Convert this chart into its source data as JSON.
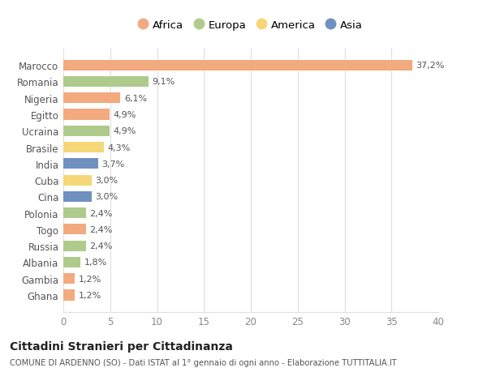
{
  "countries": [
    "Marocco",
    "Romania",
    "Nigeria",
    "Egitto",
    "Ucraina",
    "Brasile",
    "India",
    "Cuba",
    "Cina",
    "Polonia",
    "Togo",
    "Russia",
    "Albania",
    "Gambia",
    "Ghana"
  ],
  "values": [
    37.2,
    9.1,
    6.1,
    4.9,
    4.9,
    4.3,
    3.7,
    3.0,
    3.0,
    2.4,
    2.4,
    2.4,
    1.8,
    1.2,
    1.2
  ],
  "continents": [
    "Africa",
    "Europa",
    "Africa",
    "Africa",
    "Europa",
    "America",
    "Asia",
    "America",
    "Asia",
    "Europa",
    "Africa",
    "Europa",
    "Europa",
    "Africa",
    "Africa"
  ],
  "continent_colors": {
    "Africa": "#F2AA7E",
    "Europa": "#AECB8C",
    "America": "#F5D778",
    "Asia": "#7090C0"
  },
  "legend_order": [
    "Africa",
    "Europa",
    "America",
    "Asia"
  ],
  "xlim": [
    0,
    40
  ],
  "xticks": [
    0,
    5,
    10,
    15,
    20,
    25,
    30,
    35,
    40
  ],
  "title": "Cittadini Stranieri per Cittadinanza",
  "subtitle": "COMUNE DI ARDENNO (SO) - Dati ISTAT al 1° gennaio di ogni anno - Elaborazione TUTTITALIA.IT",
  "bg_color": "#ffffff",
  "plot_bg_color": "#ffffff",
  "grid_color": "#e0e0e0"
}
